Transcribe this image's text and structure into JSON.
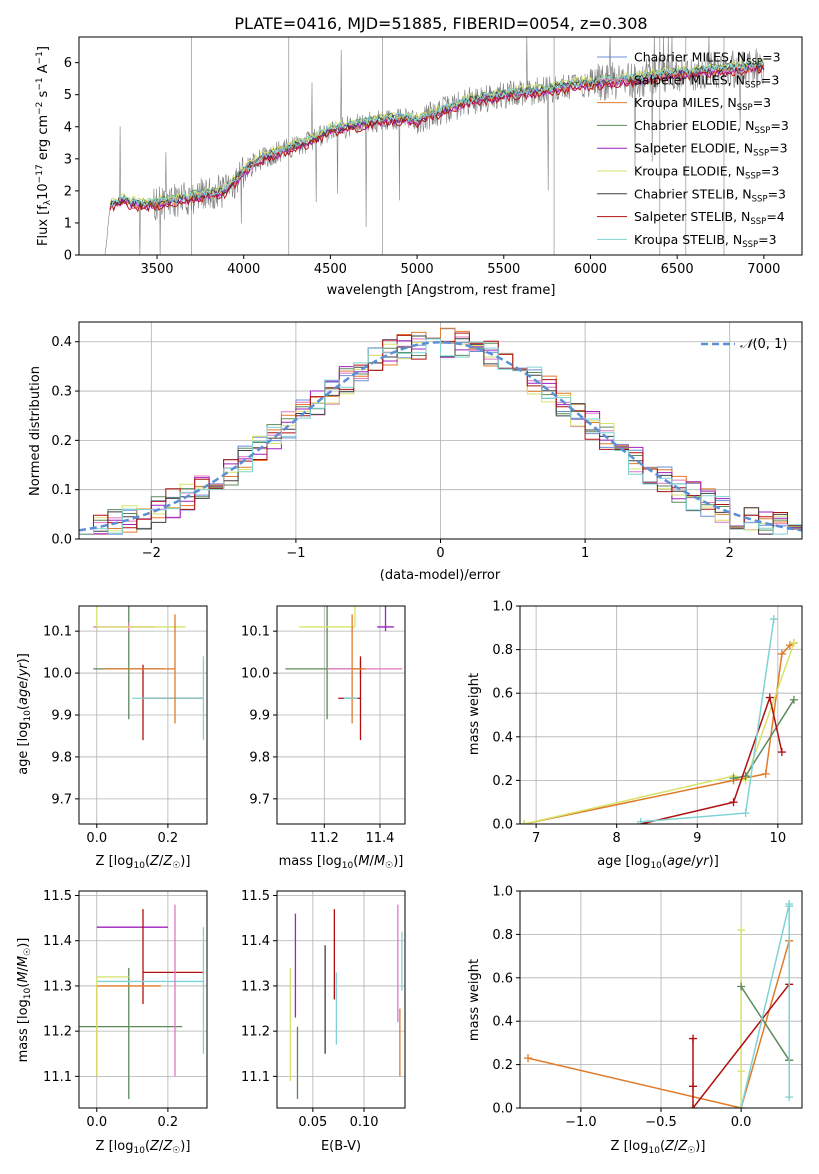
{
  "chart_data": [
    {
      "type": "line",
      "title": "PLATE=0416, MJD=51885, FIBERID=0054, z=0.308",
      "xlabel": "wavelength [Angstrom, rest frame]",
      "ylabel": "Flux [f_λ 10^-17 erg cm^-2 s^-1 A^-1]",
      "xlim": [
        3050,
        7220
      ],
      "ylim": [
        0,
        6.8
      ],
      "xticks": [
        3500,
        4000,
        4500,
        5000,
        5500,
        6000,
        6500,
        7000
      ],
      "yticks": [
        0,
        1,
        2,
        3,
        4,
        5,
        6
      ],
      "grid": false,
      "legend_position": "top-right",
      "continuum": {
        "x": [
          3200,
          3230,
          3300,
          3400,
          3500,
          3600,
          3700,
          3800,
          3900,
          4000,
          4100,
          4200,
          4300,
          4400,
          4500,
          4600,
          4700,
          4800,
          4900,
          5000,
          5100,
          5200,
          5300,
          5400,
          5500,
          5600,
          5700,
          5800,
          5900,
          6000,
          6100,
          6200,
          6300,
          6400,
          6500,
          6600,
          6700,
          6800,
          6900,
          7000
        ],
        "y": [
          0.0,
          1.55,
          1.7,
          1.55,
          1.6,
          1.7,
          1.8,
          1.9,
          2.0,
          2.6,
          3.0,
          3.2,
          3.4,
          3.6,
          3.9,
          4.0,
          4.1,
          4.2,
          4.25,
          4.2,
          4.4,
          4.6,
          4.8,
          4.9,
          5.0,
          5.05,
          5.1,
          5.2,
          5.3,
          5.35,
          5.4,
          5.45,
          5.5,
          5.6,
          5.65,
          5.7,
          5.75,
          5.8,
          5.85,
          5.9
        ]
      },
      "series": [
        {
          "name": "Chabrier MILES, N_SSP=3",
          "color": "#6b8fd6"
        },
        {
          "name": "Salpeter MILES, N_SSP=3",
          "color": "#e377c2"
        },
        {
          "name": "Kroupa MILES, N_SSP=3",
          "color": "#e07b2a"
        },
        {
          "name": "Chabrier ELODIE, N_SSP=3",
          "color": "#5c8a5c"
        },
        {
          "name": "Salpeter ELODIE, N_SSP=3",
          "color": "#a020c0"
        },
        {
          "name": "Kroupa ELODIE, N_SSP=3",
          "color": "#d7e36a"
        },
        {
          "name": "Chabrier STELIB, N_SSP=3",
          "color": "#404040"
        },
        {
          "name": "Salpeter STELIB, N_SSP=4",
          "color": "#b01010"
        },
        {
          "name": "Kroupa STELIB, N_SSP=3",
          "color": "#7fd3d3"
        }
      ],
      "legend_labels": [
        "Chabrier MILES, N",
        "Salpeter MILES, N",
        "Kroupa MILES, N",
        "Chabrier ELODIE, N",
        "Salpeter ELODIE, N",
        "Kroupa ELODIE, N",
        "Chabrier STELIB, N",
        "Salpeter STELIB, N",
        "Kroupa STELIB, N"
      ],
      "legend_counts": [
        "=3",
        "=3",
        "=3",
        "=3",
        "=3",
        "=3",
        "=3",
        "=4",
        "=3"
      ],
      "legend_subscript": "SSP",
      "data_color": "#808080"
    },
    {
      "type": "line",
      "xlabel": "(data-model)/error",
      "ylabel": "Normed distribution",
      "xlim": [
        -2.5,
        2.5
      ],
      "ylim": [
        0,
        0.44
      ],
      "xticks": [
        -2,
        -1,
        0,
        1,
        2
      ],
      "yticks": [
        0.0,
        0.1,
        0.2,
        0.3,
        0.4
      ],
      "grid": true,
      "legend_position": "top-right",
      "legend_label": "𝒩(0, 1)",
      "legend_main": "𝒩",
      "legend_args": "(0, 1)",
      "gaussian": {
        "mean": 0,
        "sigma": 1,
        "color": "#5b8fd6",
        "style": "dashed"
      }
    },
    {
      "type": "scatter",
      "xlabel": "Z [log10(Z/Z☉)]",
      "ylabel": "age [log10(age/yr)]",
      "xlim": [
        -0.05,
        0.31
      ],
      "ylim": [
        9.64,
        10.16
      ],
      "xticks": [
        0.0,
        0.2
      ],
      "yticks": [
        9.7,
        9.8,
        9.9,
        10.0,
        10.1
      ],
      "grid": true,
      "points": [
        {
          "x": 0.09,
          "y": 10.01,
          "xerr": [
            0.1,
            0.1
          ],
          "yerr": [
            0.12,
            0.35
          ],
          "color": "#5c8a5c"
        },
        {
          "x": 0.09,
          "y": 10.11,
          "xerr": [
            0.1,
            0.07
          ],
          "yerr": [
            0.01,
            0.01
          ],
          "color": "#e377c2"
        },
        {
          "x": 0.0,
          "y": 10.11,
          "xerr": [
            0.0,
            0.25
          ],
          "yerr": [
            0.0,
            0.4
          ],
          "color": "#d7e36a"
        },
        {
          "x": 0.13,
          "y": 9.94,
          "xerr": [
            0.0,
            0.17
          ],
          "yerr": [
            0.1,
            0.08
          ],
          "color": "#b01010"
        },
        {
          "x": 0.3,
          "y": 9.94,
          "xerr": [
            0.2,
            0.0
          ],
          "yerr": [
            0.1,
            0.1
          ],
          "color": "#7fd3d3"
        },
        {
          "x": 0.22,
          "y": 10.01,
          "xerr": [
            0.2,
            0.0
          ],
          "yerr": [
            0.13,
            0.13
          ],
          "color": "#e07b2a"
        }
      ]
    },
    {
      "type": "scatter",
      "xlabel": "mass [log10(M/M☉)]",
      "xlim": [
        11.03,
        11.49
      ],
      "ylim": [
        9.64,
        10.16
      ],
      "xticks": [
        11.2,
        11.4
      ],
      "yticks": [
        9.7,
        9.8,
        9.9,
        10.0,
        10.1
      ],
      "grid": true,
      "points": [
        {
          "x": 11.21,
          "y": 10.01,
          "xerr": [
            0.15,
            0.1
          ],
          "yerr": [
            0.12,
            0.35
          ],
          "color": "#5c8a5c"
        },
        {
          "x": 11.33,
          "y": 10.01,
          "xerr": [
            0.12,
            0.15
          ],
          "yerr": [
            0.02,
            0.02
          ],
          "color": "#e377c2"
        },
        {
          "x": 11.31,
          "y": 10.11,
          "xerr": [
            0.2,
            0.0
          ],
          "yerr": [
            0.0,
            0.4
          ],
          "color": "#d7e36a"
        },
        {
          "x": 11.33,
          "y": 9.94,
          "xerr": [
            0.08,
            0.0
          ],
          "yerr": [
            0.1,
            0.1
          ],
          "color": "#b01010"
        },
        {
          "x": 11.42,
          "y": 10.11,
          "xerr": [
            0.03,
            0.03
          ],
          "yerr": [
            0.01,
            0.34
          ],
          "color": "#a020c0"
        },
        {
          "x": 11.3,
          "y": 10.01,
          "xerr": [
            0.0,
            0.05
          ],
          "yerr": [
            0.13,
            0.13
          ],
          "color": "#e07b2a"
        },
        {
          "x": 11.27,
          "y": 9.94,
          "xerr": [
            0.0,
            0.05
          ],
          "yerr": [
            0.0,
            0.0
          ],
          "color": "#7fd3d3"
        }
      ]
    },
    {
      "type": "line",
      "xlabel": "age [log10(age/yr)]",
      "ylabel": "mass weight",
      "xlim": [
        6.8,
        10.3
      ],
      "ylim": [
        0,
        1.0
      ],
      "xticks": [
        7,
        8,
        9,
        10
      ],
      "yticks": [
        0.0,
        0.2,
        0.4,
        0.6,
        0.8,
        1.0
      ],
      "grid": true,
      "series": [
        {
          "color": "#e07b2a",
          "x": [
            6.85,
            9.45,
            9.85,
            10.05,
            10.15,
            10.2
          ],
          "y": [
            0.0,
            0.2,
            0.23,
            0.78,
            0.82,
            0.83
          ]
        },
        {
          "color": "#d7e36a",
          "x": [
            6.85,
            9.45,
            9.6,
            10.2
          ],
          "y": [
            0.0,
            0.22,
            0.2,
            0.83
          ]
        },
        {
          "color": "#5c8a5c",
          "x": [
            9.45,
            9.6,
            10.2
          ],
          "y": [
            0.21,
            0.22,
            0.57
          ]
        },
        {
          "color": "#b01010",
          "x": [
            8.3,
            9.45,
            9.9,
            10.05
          ],
          "y": [
            0.0,
            0.1,
            0.58,
            0.33
          ]
        },
        {
          "color": "#7fd3d3",
          "x": [
            8.3,
            9.6,
            9.95
          ],
          "y": [
            0.01,
            0.05,
            0.94
          ]
        }
      ]
    },
    {
      "type": "scatter",
      "xlabel": "Z [log10(Z/Z☉)]",
      "ylabel": "mass [log10(M/M☉)]",
      "xlim": [
        -0.05,
        0.31
      ],
      "ylim": [
        11.03,
        11.51
      ],
      "xticks": [
        0.0,
        0.2
      ],
      "yticks": [
        11.1,
        11.2,
        11.3,
        11.4,
        11.5
      ],
      "grid": true,
      "points": [
        {
          "x": 0.09,
          "y": 11.21,
          "xerr": [
            0.15,
            0.15
          ],
          "yerr": [
            0.16,
            0.13
          ],
          "color": "#5c8a5c"
        },
        {
          "x": 0.0,
          "y": 11.43,
          "xerr": [
            0.0,
            0.2
          ],
          "yerr": [
            0.0,
            0.0
          ],
          "color": "#a020c0"
        },
        {
          "x": 0.13,
          "y": 11.33,
          "xerr": [
            0.0,
            0.17
          ],
          "yerr": [
            0.07,
            0.14
          ],
          "color": "#b01010"
        },
        {
          "x": 0.0,
          "y": 11.3,
          "xerr": [
            0.0,
            0.18
          ],
          "yerr": [
            0.2,
            0.0
          ],
          "color": "#e07b2a"
        },
        {
          "x": 0.3,
          "y": 11.31,
          "xerr": [
            0.3,
            0.0
          ],
          "yerr": [
            0.16,
            0.12
          ],
          "color": "#7fd3d3"
        },
        {
          "x": 0.0,
          "y": 11.32,
          "xerr": [
            0.0,
            0.09
          ],
          "yerr": [
            0.22,
            0.0
          ],
          "color": "#d7e36a"
        },
        {
          "x": 0.22,
          "y": 11.3,
          "xerr": [
            0.0,
            0.0
          ],
          "yerr": [
            0.2,
            0.18
          ],
          "color": "#e377c2"
        }
      ]
    },
    {
      "type": "scatter",
      "xlabel": "E(B-V)",
      "xlim": [
        0.015,
        0.14
      ],
      "ylim": [
        11.03,
        11.51
      ],
      "xticks": [
        0.05,
        0.1
      ],
      "yticks": [
        11.1,
        11.2,
        11.3,
        11.4,
        11.5
      ],
      "grid": true,
      "points": [
        {
          "x": 0.028,
          "y": 11.22,
          "xerr": [
            0.0,
            0.0
          ],
          "yerr": [
            0.13,
            0.12
          ],
          "color": "#d7e36a"
        },
        {
          "x": 0.033,
          "y": 11.34,
          "xerr": [
            0.0,
            0.0
          ],
          "yerr": [
            0.11,
            0.12
          ],
          "color": "#a020c0"
        },
        {
          "x": 0.035,
          "y": 11.21,
          "xerr": [
            0.0,
            0.0
          ],
          "yerr": [
            0.16,
            0.0
          ],
          "color": "#5c8a5c"
        },
        {
          "x": 0.062,
          "y": 11.27,
          "xerr": [
            0.0,
            0.0
          ],
          "yerr": [
            0.12,
            0.12
          ],
          "color": "#404040"
        },
        {
          "x": 0.071,
          "y": 11.33,
          "xerr": [
            0.0,
            0.0
          ],
          "yerr": [
            0.06,
            0.14
          ],
          "color": "#b01010"
        },
        {
          "x": 0.073,
          "y": 11.27,
          "xerr": [
            0.0,
            0.0
          ],
          "yerr": [
            0.1,
            0.06
          ],
          "color": "#7fd3d3"
        },
        {
          "x": 0.133,
          "y": 11.35,
          "xerr": [
            0.0,
            0.0
          ],
          "yerr": [
            0.13,
            0.13
          ],
          "color": "#e377c2"
        },
        {
          "x": 0.135,
          "y": 11.25,
          "xerr": [
            0.0,
            0.0
          ],
          "yerr": [
            0.15,
            0.0
          ],
          "color": "#e07b2a"
        },
        {
          "x": 0.137,
          "y": 11.29,
          "xerr": [
            0.0,
            0.0
          ],
          "yerr": [
            0.0,
            0.13
          ],
          "color": "#7fd3d3"
        }
      ]
    },
    {
      "type": "line",
      "xlabel": "Z [log10(Z/Z☉)]",
      "ylabel": "mass weight",
      "xlim": [
        -1.38,
        0.38
      ],
      "ylim": [
        0,
        1.0
      ],
      "xticks": [
        -1.0,
        -0.5,
        0.0
      ],
      "yticks": [
        0.0,
        0.2,
        0.4,
        0.6,
        0.8,
        1.0
      ],
      "grid": true,
      "series": [
        {
          "color": "#e07b2a",
          "x": [
            -1.33,
            0.0,
            0.3,
            0.3
          ],
          "y": [
            0.23,
            0.0,
            0.77,
            0.77
          ]
        },
        {
          "color": "#d7e36a",
          "x": [
            0.0,
            0.0,
            0.0
          ],
          "y": [
            0.82,
            0.17,
            0.0
          ]
        },
        {
          "color": "#5c8a5c",
          "x": [
            0.0,
            0.3,
            0.3
          ],
          "y": [
            0.56,
            0.22,
            0.22
          ]
        },
        {
          "color": "#b01010",
          "x": [
            -0.3,
            -0.3,
            -0.3,
            0.3
          ],
          "y": [
            0.32,
            0.1,
            0.0,
            0.57
          ]
        },
        {
          "color": "#7fd3d3",
          "x": [
            0.0,
            0.3,
            0.3,
            0.3
          ],
          "y": [
            0.0,
            0.94,
            0.05,
            0.93
          ]
        }
      ]
    }
  ]
}
